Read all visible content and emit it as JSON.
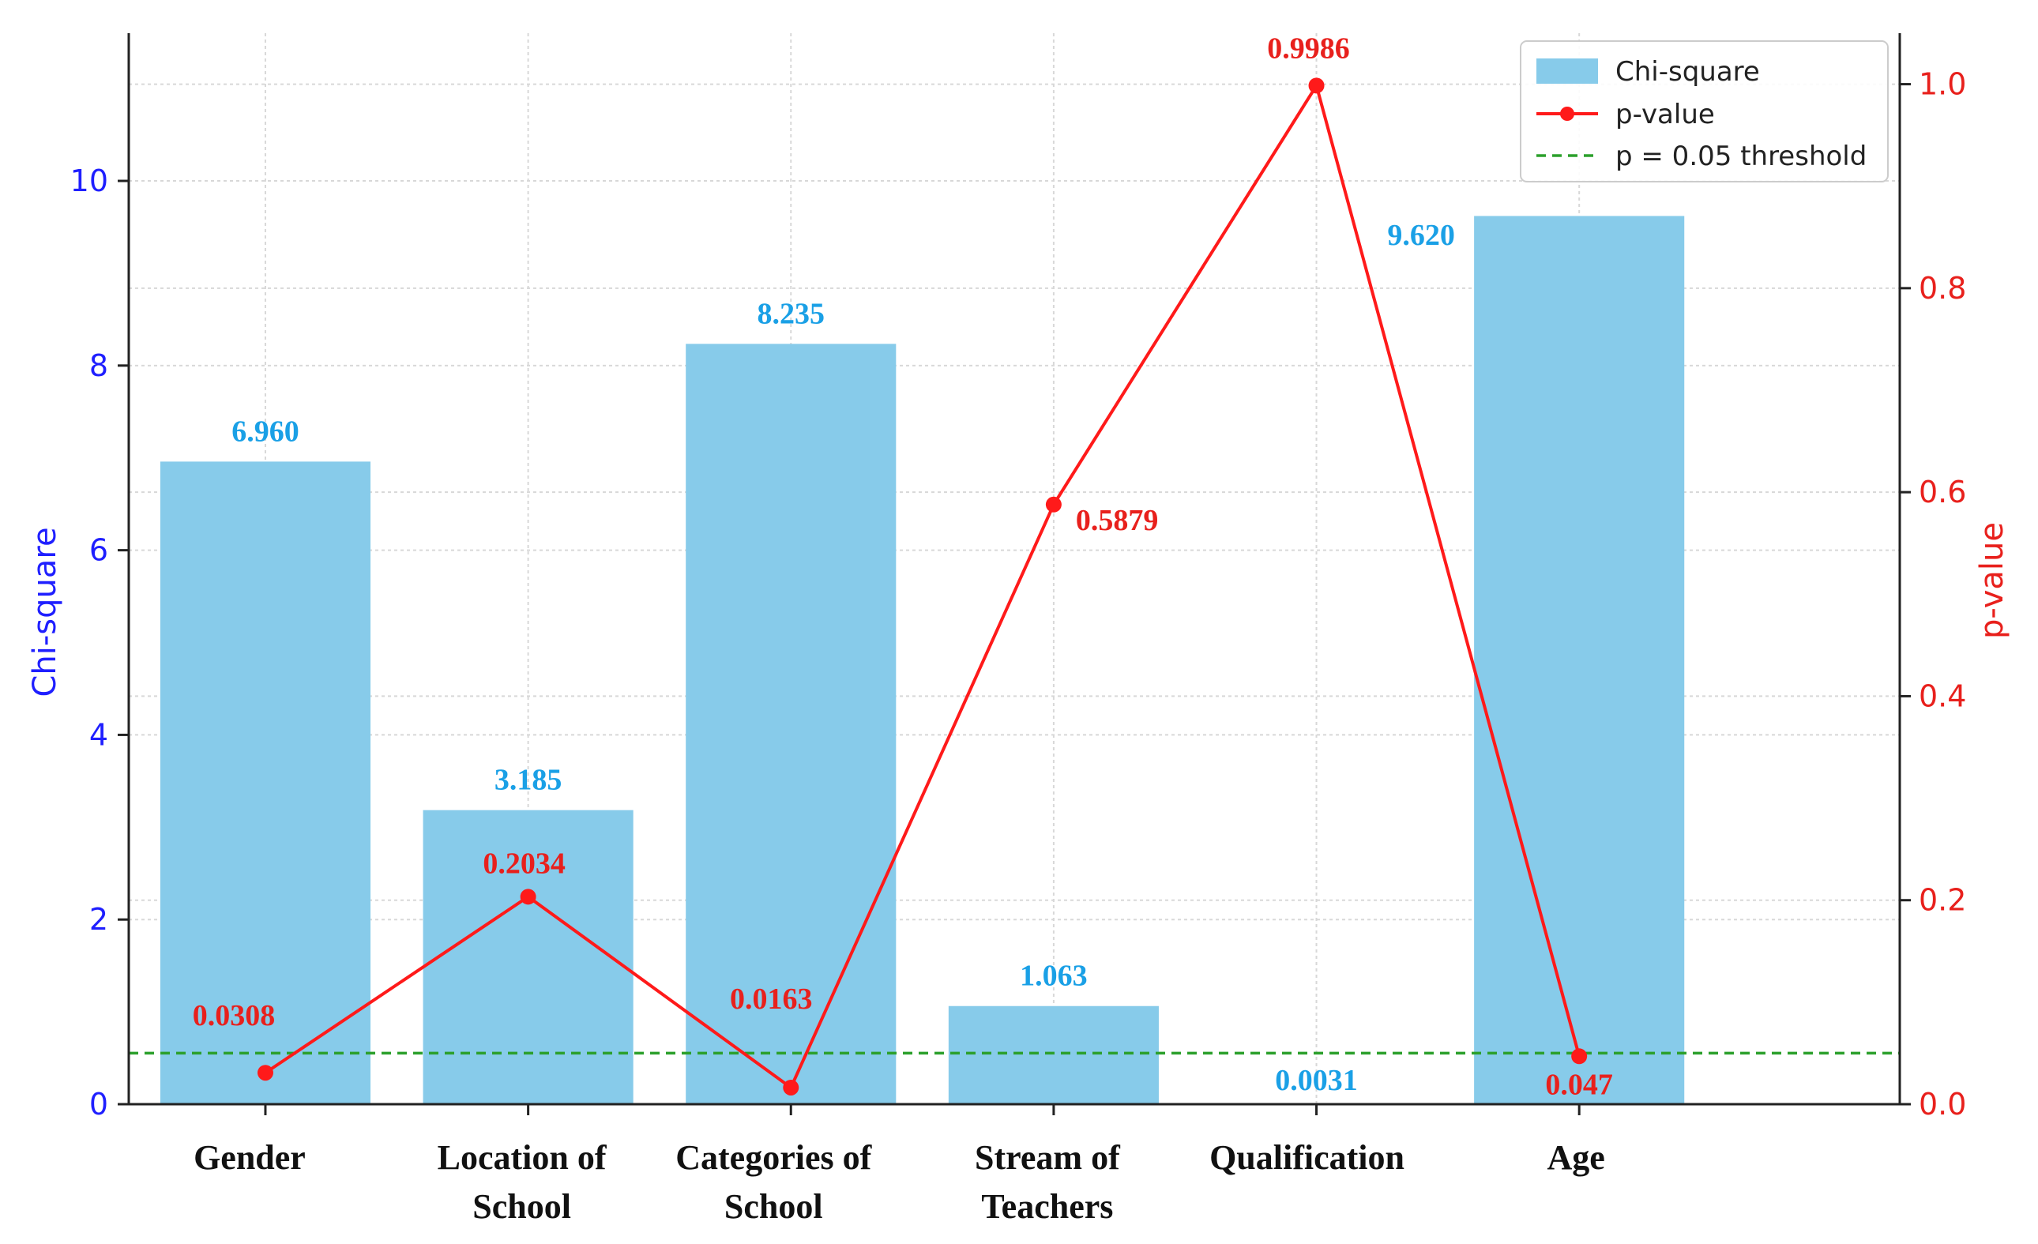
{
  "chart_data": {
    "type": "bar",
    "categories": [
      [
        "Gender"
      ],
      [
        "Location of",
        "School"
      ],
      [
        "Categories of",
        "School"
      ],
      [
        "Stream of",
        "Teachers"
      ],
      [
        "Qualification"
      ],
      [
        "Age"
      ]
    ],
    "series": [
      {
        "name": "Chi-square",
        "type": "bar",
        "axis": "left",
        "color": "#87cbea",
        "values": [
          6.96,
          3.185,
          8.235,
          1.063,
          0.0031,
          9.62
        ],
        "labels": [
          "6.960",
          "3.185",
          "8.235",
          "1.063",
          "0.0031",
          "9.620"
        ]
      },
      {
        "name": "p-value",
        "type": "line",
        "axis": "right",
        "color": "#ff1a1a",
        "values": [
          0.0308,
          0.2034,
          0.0163,
          0.5879,
          0.9986,
          0.047
        ],
        "labels": [
          "0.0308",
          "0.2034",
          "0.0163",
          "0.5879",
          "0.9986",
          "0.047"
        ]
      },
      {
        "name": "p = 0.05 threshold",
        "type": "hline",
        "axis": "right",
        "color": "#2ca02c",
        "value": 0.05
      }
    ],
    "ylabel": "Chi-square",
    "y2label": "p-value",
    "ylim": [
      0,
      11.6
    ],
    "y2lim": [
      0,
      1.05
    ],
    "yticks": [
      "0",
      "2",
      "4",
      "6",
      "8",
      "10"
    ],
    "y2ticks": [
      "0.0",
      "0.2",
      "0.4",
      "0.6",
      "0.8",
      "1.0"
    ],
    "grid": true,
    "legend": "top-right"
  }
}
